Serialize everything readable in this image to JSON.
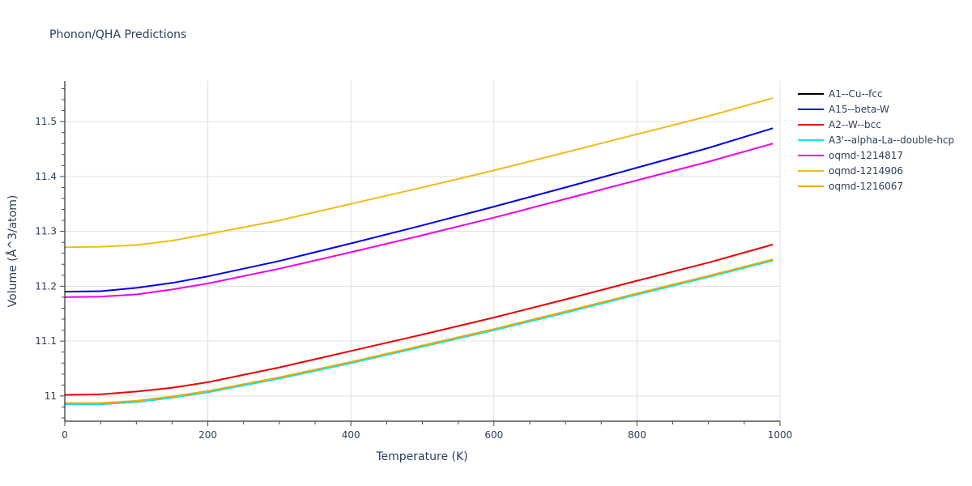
{
  "title": "Phonon/QHA Predictions",
  "chart_data": {
    "type": "line",
    "title": "Phonon/QHA Predictions",
    "xlabel": "Temperature (K)",
    "ylabel": "Volume (Å^3/atom)",
    "xlim": [
      0,
      1000
    ],
    "ylim": [
      10.954,
      11.574
    ],
    "x_ticks": [
      0,
      200,
      400,
      600,
      800,
      1000
    ],
    "y_ticks": [
      11,
      11.1,
      11.2,
      11.3,
      11.4,
      11.5
    ],
    "x_tick_labels": [
      "0",
      "200",
      "400",
      "600",
      "800",
      "1000"
    ],
    "y_tick_labels": [
      "11",
      "11.1",
      "11.2",
      "11.3",
      "11.4",
      "11.5"
    ],
    "grid": true,
    "legend_position": "right",
    "x": [
      0,
      50,
      100,
      150,
      200,
      300,
      400,
      500,
      600,
      700,
      800,
      900,
      990
    ],
    "series": [
      {
        "name": "A1--Cu--fcc",
        "color": "#000000",
        "values": [
          10.985,
          10.985,
          10.989,
          10.997,
          11.007,
          11.032,
          11.06,
          11.09,
          11.12,
          11.152,
          11.185,
          11.217,
          11.247
        ]
      },
      {
        "name": "A15--beta-W",
        "color": "#0000ee",
        "values": [
          11.19,
          11.191,
          11.197,
          11.206,
          11.218,
          11.246,
          11.278,
          11.311,
          11.345,
          11.38,
          11.416,
          11.452,
          11.488
        ]
      },
      {
        "name": "A2--W--bcc",
        "color": "#ee0000",
        "values": [
          11.002,
          11.003,
          11.008,
          11.015,
          11.025,
          11.052,
          11.082,
          11.112,
          11.143,
          11.176,
          11.21,
          11.243,
          11.276
        ]
      },
      {
        "name": "A3'--alpha-La--double-hcp",
        "color": "#00eeee",
        "values": [
          10.985,
          10.985,
          10.989,
          10.997,
          11.007,
          11.032,
          11.06,
          11.09,
          11.12,
          11.152,
          11.185,
          11.217,
          11.247
        ]
      },
      {
        "name": "oqmd-1214817",
        "color": "#ee00ee",
        "values": [
          11.18,
          11.181,
          11.185,
          11.194,
          11.205,
          11.232,
          11.262,
          11.293,
          11.325,
          11.359,
          11.393,
          11.427,
          11.46
        ]
      },
      {
        "name": "oqmd-1214906",
        "color": "#eebc1a",
        "values": [
          11.271,
          11.272,
          11.275,
          11.283,
          11.295,
          11.32,
          11.35,
          11.38,
          11.411,
          11.444,
          11.477,
          11.51,
          11.543
        ]
      },
      {
        "name": "oqmd-1216067",
        "color": "#eea900",
        "values": [
          10.987,
          10.987,
          10.991,
          10.999,
          11.009,
          11.034,
          11.062,
          11.092,
          11.122,
          11.154,
          11.187,
          11.219,
          11.249
        ]
      }
    ]
  }
}
